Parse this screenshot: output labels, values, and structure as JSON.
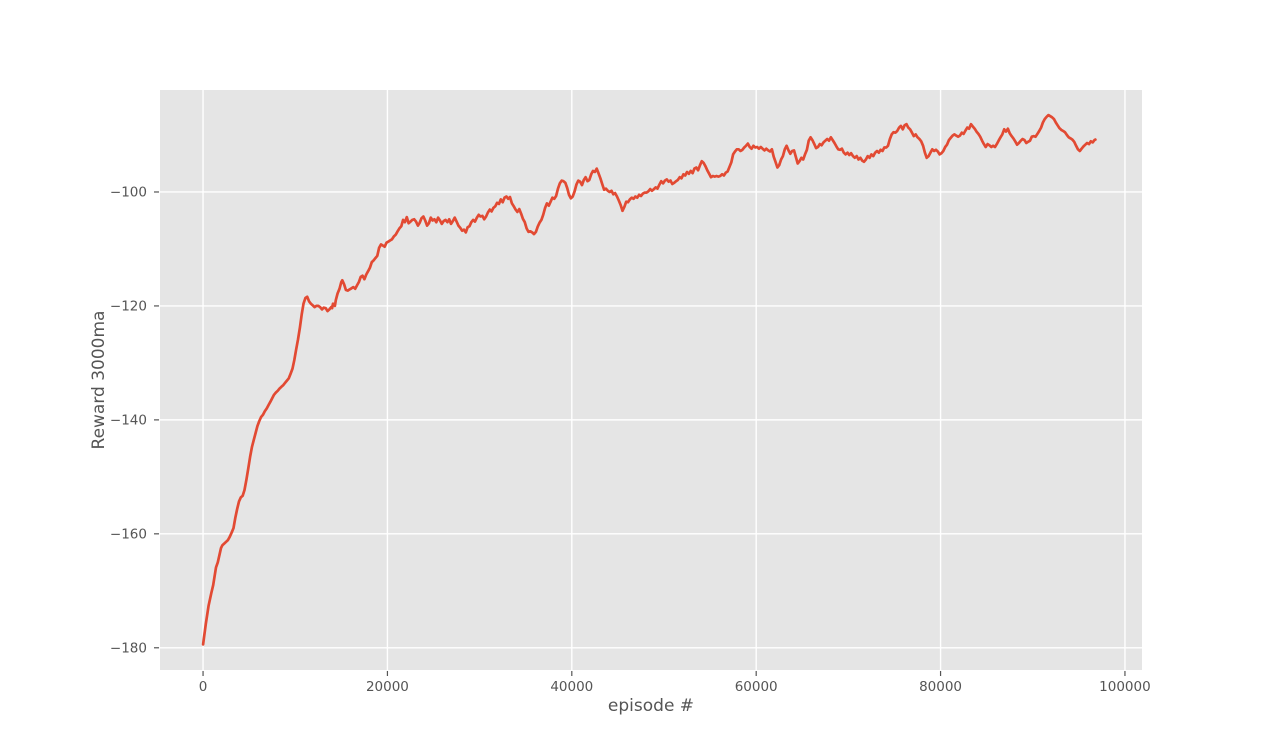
{
  "chart_data": {
    "type": "line",
    "title": "",
    "xlabel": "episode #",
    "ylabel": "Reward 3000ma",
    "legend": null,
    "grid": true,
    "x_ticks": [
      0,
      20000,
      40000,
      60000,
      80000,
      100000
    ],
    "x_tick_labels": [
      "0",
      "20000",
      "40000",
      "60000",
      "80000",
      "100000"
    ],
    "y_ticks": [
      -180,
      -160,
      -140,
      -120,
      -100
    ],
    "y_tick_labels": [
      "−180",
      "−160",
      "−140",
      "−120",
      "−100"
    ],
    "xlim": [
      -4670,
      101850
    ],
    "ylim": [
      -183.9,
      -82.1
    ],
    "style": {
      "axes_bg": "#e5e5e5",
      "grid_color": "#ffffff",
      "line_color": "#e24a33",
      "text_color": "#555555",
      "tick_color": "#555555",
      "figure_bg": "#ffffff"
    },
    "series": [
      {
        "name": "Reward 3000ma",
        "x": [
          0,
          300,
          600,
          900,
          1100,
          1300,
          1400,
          1600,
          1800,
          1950,
          2100,
          2300,
          2500,
          2700,
          2900,
          3100,
          3300,
          3500,
          3700,
          3900,
          4100,
          4300,
          4500,
          4700,
          4900,
          5100,
          5300,
          5500,
          5700,
          5900,
          6100,
          6300,
          6500,
          6700,
          6900,
          7100,
          7300,
          7500,
          7700,
          7900,
          8100,
          8300,
          8500,
          8700,
          8900,
          9100,
          9300,
          9500,
          9700,
          9900,
          10100,
          10300,
          10500,
          10700,
          10900,
          11100,
          11300,
          11500,
          11700,
          11900,
          12100,
          12300,
          12500,
          12700,
          12900,
          13100,
          13300,
          13500,
          13700,
          13900,
          14000,
          14100,
          14300,
          14400,
          14600,
          14800,
          15000,
          15100,
          15300,
          15500,
          15700,
          15900,
          16100,
          16300,
          16500,
          16700,
          16900,
          17100,
          17300,
          17500,
          17700,
          17900,
          18100,
          18300,
          18500,
          18700,
          18900,
          19100,
          19300,
          19500,
          19700,
          19900,
          20100,
          20300,
          20500,
          20700,
          20900,
          21100,
          21300,
          21500,
          21700,
          21900,
          22100,
          22300,
          22500,
          22700,
          22900,
          23100,
          23300,
          23500,
          23700,
          23900,
          24100,
          24300,
          24500,
          24700,
          24900,
          25100,
          25300,
          25500,
          25700,
          25900,
          26100,
          26300,
          26500,
          26700,
          26900,
          27100,
          27300,
          27500,
          27700,
          27900,
          28100,
          28300,
          28500,
          28700,
          28900,
          29100,
          29300,
          29500,
          29700,
          29900,
          30100,
          30300,
          30500,
          30700,
          30900,
          31100,
          31300,
          31500,
          31700,
          31900,
          32100,
          32300,
          32500,
          32700,
          32900,
          33100,
          33300,
          33500,
          33700,
          33900,
          34100,
          34300,
          34500,
          34700,
          34900,
          35100,
          35300,
          35500,
          35700,
          35900,
          36100,
          36300,
          36500,
          36700,
          36900,
          37100,
          37300,
          37500,
          37700,
          37900,
          38100,
          38300,
          38500,
          38700,
          38900,
          39100,
          39300,
          39500,
          39700,
          39900,
          40100,
          40300,
          40500,
          40700,
          40900,
          41100,
          41300,
          41500,
          41700,
          41900,
          42100,
          42300,
          42500,
          42700,
          42900,
          43100,
          43300,
          43500,
          43700,
          43900,
          44100,
          44300,
          44500,
          44700,
          44900,
          45100,
          45300,
          45500,
          45700,
          45900,
          46100,
          46300,
          46500,
          46700,
          46900,
          47100,
          47300,
          47500,
          47700,
          47900,
          48100,
          48300,
          48500,
          48700,
          48900,
          49100,
          49300,
          49500,
          49700,
          49900,
          50100,
          50300,
          50500,
          50700,
          50900,
          51100,
          51300,
          51500,
          51700,
          51900,
          52100,
          52300,
          52500,
          52700,
          52900,
          53100,
          53300,
          53500,
          53700,
          53900,
          54100,
          54300,
          54500,
          54700,
          54900,
          55100,
          55300,
          55500,
          55700,
          55900,
          56100,
          56300,
          56500,
          56700,
          56900,
          57100,
          57300,
          57500,
          57700,
          57900,
          58100,
          58300,
          58500,
          58700,
          58900,
          59100,
          59300,
          59500,
          59700,
          59900,
          60100,
          60300,
          60500,
          60700,
          60900,
          61100,
          61300,
          61500,
          61700,
          61900,
          62100,
          62300,
          62500,
          62700,
          62900,
          63100,
          63300,
          63500,
          63700,
          63900,
          64100,
          64300,
          64500,
          64700,
          64900,
          65100,
          65300,
          65500,
          65700,
          65900,
          66100,
          66300,
          66500,
          66700,
          66900,
          67100,
          67300,
          67500,
          67700,
          67900,
          68100,
          68300,
          68500,
          68700,
          68900,
          69100,
          69300,
          69500,
          69700,
          69900,
          70100,
          70300,
          70500,
          70700,
          70900,
          71100,
          71300,
          71500,
          71700,
          71900,
          72100,
          72300,
          72500,
          72700,
          72900,
          73100,
          73300,
          73500,
          73700,
          73900,
          74100,
          74300,
          74500,
          74700,
          74900,
          75100,
          75300,
          75500,
          75700,
          75900,
          76100,
          76300,
          76500,
          76700,
          76900,
          77100,
          77300,
          77500,
          77700,
          77900,
          78100,
          78300,
          78500,
          78700,
          78900,
          79100,
          79300,
          79500,
          79700,
          79900,
          80100,
          80300,
          80500,
          80700,
          80900,
          81100,
          81300,
          81500,
          81700,
          81900,
          82100,
          82300,
          82500,
          82700,
          82900,
          83100,
          83300,
          83500,
          83700,
          83900,
          84100,
          84300,
          84500,
          84700,
          84900,
          85100,
          85300,
          85500,
          85700,
          85900,
          86100,
          86300,
          86500,
          86700,
          86900,
          87100,
          87300,
          87500,
          87700,
          87900,
          88100,
          88300,
          88500,
          88700,
          88900,
          89100,
          89300,
          89500,
          89700,
          89900,
          90100,
          90300,
          90500,
          90700,
          90900,
          91100,
          91300,
          91500,
          91700,
          91900,
          92100,
          92300,
          92500,
          92700,
          92900,
          93100,
          93300,
          93500,
          93700,
          93900,
          94100,
          94300,
          94500,
          94700,
          94900,
          95100,
          95300,
          95500,
          95700,
          95900,
          96100,
          96300,
          96500,
          96700,
          96800
        ],
        "y": [
          -179.4,
          -175.8,
          -172.6,
          -170.4,
          -169.0,
          -167.0,
          -165.9,
          -165.0,
          -163.6,
          -162.5,
          -162.0,
          -161.7,
          -161.4,
          -161.1,
          -160.5,
          -159.8,
          -159.0,
          -157.2,
          -155.6,
          -154.3,
          -153.6,
          -153.3,
          -152.3,
          -150.5,
          -148.6,
          -146.5,
          -144.8,
          -143.5,
          -142.3,
          -141.1,
          -140.2,
          -139.5,
          -139.1,
          -138.5,
          -138.0,
          -137.4,
          -136.8,
          -136.2,
          -135.6,
          -135.2,
          -134.9,
          -134.5,
          -134.2,
          -133.9,
          -133.5,
          -133.1,
          -132.7,
          -131.9,
          -131.0,
          -129.5,
          -127.6,
          -125.9,
          -123.8,
          -121.5,
          -119.6,
          -118.6,
          -118.4,
          -119.2,
          -119.6,
          -119.9,
          -120.2,
          -120.0,
          -120.0,
          -120.2,
          -120.6,
          -120.3,
          -120.4,
          -120.9,
          -120.6,
          -120.2,
          -120.4,
          -119.6,
          -120.0,
          -119.0,
          -117.8,
          -117.0,
          -115.8,
          -115.5,
          -116.2,
          -117.2,
          -117.3,
          -117.1,
          -116.9,
          -116.7,
          -117.0,
          -116.4,
          -115.8,
          -114.9,
          -114.7,
          -115.3,
          -114.5,
          -113.9,
          -113.3,
          -112.3,
          -112.0,
          -111.6,
          -111.2,
          -109.8,
          -109.2,
          -109.4,
          -109.6,
          -108.9,
          -108.7,
          -108.5,
          -108.3,
          -107.8,
          -107.5,
          -106.9,
          -106.4,
          -106.0,
          -104.9,
          -105.3,
          -104.4,
          -105.5,
          -105.2,
          -104.9,
          -104.8,
          -105.2,
          -105.9,
          -105.4,
          -104.6,
          -104.3,
          -105.0,
          -105.9,
          -105.5,
          -104.5,
          -105.0,
          -104.8,
          -105.3,
          -104.5,
          -105.0,
          -105.6,
          -105.1,
          -104.9,
          -105.3,
          -104.8,
          -105.6,
          -105.1,
          -104.5,
          -105.2,
          -105.9,
          -106.3,
          -106.8,
          -106.6,
          -107.1,
          -106.2,
          -106.0,
          -105.3,
          -104.9,
          -105.2,
          -104.5,
          -104.0,
          -104.3,
          -104.2,
          -104.8,
          -104.3,
          -103.6,
          -103.1,
          -103.4,
          -102.8,
          -102.5,
          -101.9,
          -102.1,
          -101.3,
          -101.8,
          -101.0,
          -100.8,
          -101.2,
          -100.9,
          -102.0,
          -102.5,
          -103.1,
          -103.5,
          -103.0,
          -103.8,
          -104.7,
          -105.3,
          -106.4,
          -107.0,
          -106.9,
          -107.1,
          -107.4,
          -107.0,
          -106.1,
          -105.4,
          -104.9,
          -104.0,
          -102.8,
          -102.0,
          -102.4,
          -101.7,
          -101.0,
          -101.2,
          -100.7,
          -99.4,
          -98.5,
          -98.0,
          -98.1,
          -98.4,
          -99.3,
          -100.5,
          -101.1,
          -100.8,
          -99.9,
          -98.7,
          -98.0,
          -98.2,
          -98.8,
          -97.9,
          -97.4,
          -98.1,
          -97.9,
          -96.9,
          -96.3,
          -96.5,
          -95.9,
          -96.7,
          -97.6,
          -98.6,
          -99.6,
          -99.4,
          -99.8,
          -100.0,
          -99.8,
          -100.4,
          -100.2,
          -100.8,
          -101.5,
          -102.3,
          -103.3,
          -102.6,
          -101.7,
          -101.8,
          -101.3,
          -101.0,
          -101.2,
          -100.8,
          -101.0,
          -100.5,
          -100.7,
          -100.3,
          -100.1,
          -100.1,
          -99.9,
          -99.5,
          -99.8,
          -99.5,
          -99.2,
          -99.4,
          -98.7,
          -98.1,
          -98.5,
          -98.0,
          -97.8,
          -98.2,
          -98.0,
          -98.6,
          -98.4,
          -98.1,
          -97.9,
          -97.4,
          -97.6,
          -96.9,
          -97.1,
          -96.5,
          -96.8,
          -96.3,
          -96.7,
          -95.9,
          -95.7,
          -96.2,
          -95.3,
          -94.6,
          -94.9,
          -95.5,
          -96.2,
          -96.8,
          -97.4,
          -97.2,
          -97.3,
          -97.2,
          -97.3,
          -97.2,
          -96.9,
          -97.1,
          -96.6,
          -96.4,
          -95.6,
          -94.8,
          -93.4,
          -92.9,
          -92.5,
          -92.5,
          -92.8,
          -92.6,
          -92.2,
          -91.9,
          -91.5,
          -92.1,
          -92.4,
          -91.9,
          -92.2,
          -92.1,
          -92.4,
          -92.1,
          -92.4,
          -92.7,
          -92.4,
          -92.7,
          -92.9,
          -92.5,
          -93.8,
          -94.7,
          -95.7,
          -95.3,
          -94.3,
          -93.7,
          -92.5,
          -91.9,
          -92.7,
          -93.3,
          -92.8,
          -92.7,
          -93.8,
          -95.0,
          -94.6,
          -94.0,
          -94.3,
          -93.4,
          -92.6,
          -91.0,
          -90.4,
          -90.9,
          -91.6,
          -92.3,
          -92.1,
          -91.6,
          -91.8,
          -91.3,
          -91.0,
          -90.7,
          -91.0,
          -90.4,
          -90.9,
          -91.4,
          -92.0,
          -92.5,
          -92.6,
          -92.4,
          -93.1,
          -93.4,
          -93.1,
          -93.5,
          -93.2,
          -93.7,
          -94.0,
          -93.7,
          -94.3,
          -94.0,
          -94.5,
          -94.7,
          -94.3,
          -93.7,
          -94.0,
          -93.4,
          -93.7,
          -93.1,
          -92.8,
          -93.1,
          -92.6,
          -92.8,
          -92.2,
          -92.2,
          -91.9,
          -90.7,
          -89.9,
          -89.5,
          -89.6,
          -89.3,
          -88.7,
          -88.4,
          -89.0,
          -88.3,
          -88.1,
          -88.7,
          -89.0,
          -89.6,
          -90.2,
          -89.9,
          -90.4,
          -90.7,
          -91.1,
          -91.9,
          -93.1,
          -94.0,
          -93.7,
          -93.1,
          -92.5,
          -92.8,
          -92.6,
          -92.9,
          -93.4,
          -93.2,
          -92.8,
          -92.1,
          -91.7,
          -90.9,
          -90.5,
          -90.1,
          -89.9,
          -90.1,
          -90.3,
          -90.1,
          -89.6,
          -89.8,
          -89.2,
          -88.7,
          -88.9,
          -88.1,
          -88.5,
          -88.9,
          -89.4,
          -89.8,
          -90.3,
          -91.0,
          -91.6,
          -92.1,
          -91.6,
          -91.8,
          -92.1,
          -91.9,
          -92.1,
          -91.6,
          -91.0,
          -90.4,
          -89.9,
          -89.0,
          -89.4,
          -88.9,
          -89.7,
          -90.2,
          -90.6,
          -91.1,
          -91.7,
          -91.4,
          -91.0,
          -90.7,
          -90.9,
          -91.4,
          -91.2,
          -91.0,
          -90.3,
          -90.2,
          -90.3,
          -89.8,
          -89.3,
          -88.7,
          -87.8,
          -87.2,
          -86.8,
          -86.5,
          -86.7,
          -86.9,
          -87.2,
          -87.8,
          -88.3,
          -88.8,
          -89.1,
          -89.3,
          -89.5,
          -90.0,
          -90.4,
          -90.6,
          -90.8,
          -91.2,
          -91.9,
          -92.5,
          -92.8,
          -92.4,
          -92.0,
          -91.7,
          -91.4,
          -91.6,
          -91.1,
          -91.3,
          -90.9,
          -90.8
        ]
      }
    ]
  }
}
